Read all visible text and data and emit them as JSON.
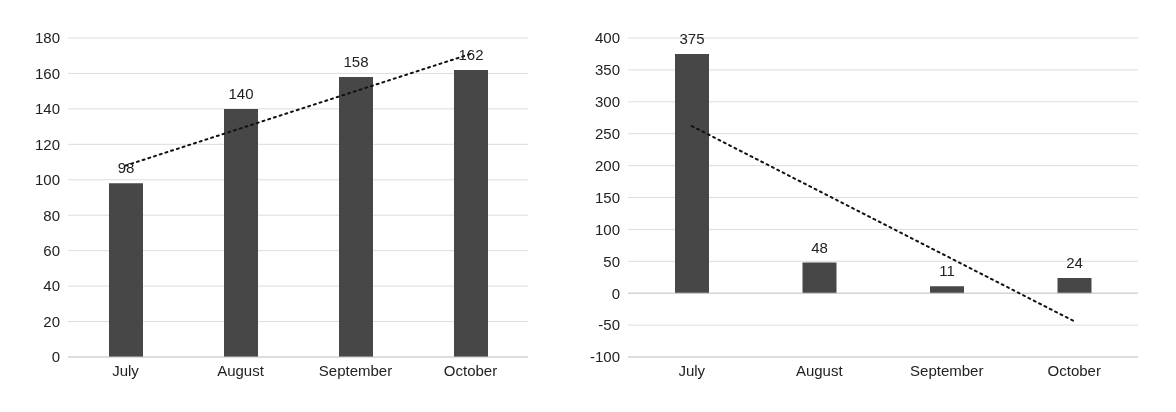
{
  "chart_data": [
    {
      "type": "bar",
      "categories": [
        "July",
        "August",
        "September",
        "October"
      ],
      "ylim": [
        0,
        180
      ],
      "yticks": [
        0,
        20,
        40,
        60,
        80,
        100,
        120,
        140,
        160,
        180
      ],
      "grid": "y",
      "series": [
        {
          "color": "#474747",
          "values": [
            98,
            140,
            158,
            162
          ],
          "value_labels": [
            "98",
            "140",
            "158",
            "162"
          ]
        },
        {
          "type": "line",
          "color": "#111111",
          "line_style": "dotted",
          "marker": "none",
          "values": [
            108,
            129,
            150,
            171
          ]
        }
      ]
    },
    {
      "type": "bar",
      "categories": [
        "July",
        "August",
        "September",
        "October"
      ],
      "ylim": [
        -100,
        400
      ],
      "yticks": [
        -100,
        -50,
        0,
        50,
        100,
        150,
        200,
        250,
        300,
        350,
        400
      ],
      "grid": "y",
      "series": [
        {
          "color": "#474747",
          "values": [
            375,
            48,
            11,
            24
          ],
          "value_labels": [
            "375",
            "48",
            "11",
            "24"
          ]
        },
        {
          "type": "line",
          "color": "#111111",
          "line_style": "dotted",
          "marker": "none",
          "values": [
            262,
            160,
            58,
            -44
          ]
        }
      ]
    }
  ]
}
